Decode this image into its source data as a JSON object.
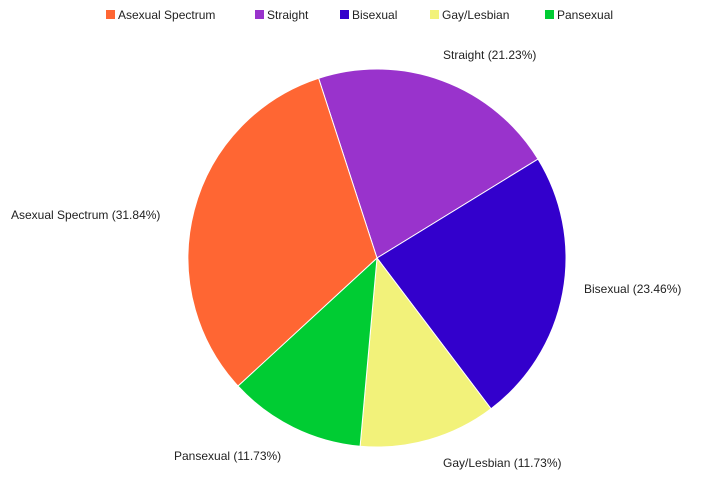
{
  "chart_data": {
    "type": "pie",
    "title": "",
    "legend_position": "top",
    "slices": [
      {
        "label": "Asexual Spectrum",
        "value": 31.84,
        "data_label": "Asexual Spectrum (31.84%)",
        "color": "#ff6633"
      },
      {
        "label": "Straight",
        "value": 21.23,
        "data_label": "Straight (21.23%)",
        "color": "#9933cc"
      },
      {
        "label": "Bisexual",
        "value": 23.46,
        "data_label": "Bisexual (23.46%)",
        "color": "#3300cc"
      },
      {
        "label": "Gay/Lesbian",
        "value": 11.73,
        "data_label": "Gay/Lesbian (11.73%)",
        "color": "#f2f27a"
      },
      {
        "label": "Pansexual",
        "value": 11.73,
        "data_label": "Pansexual (11.73%)",
        "color": "#00cc33"
      }
    ]
  }
}
